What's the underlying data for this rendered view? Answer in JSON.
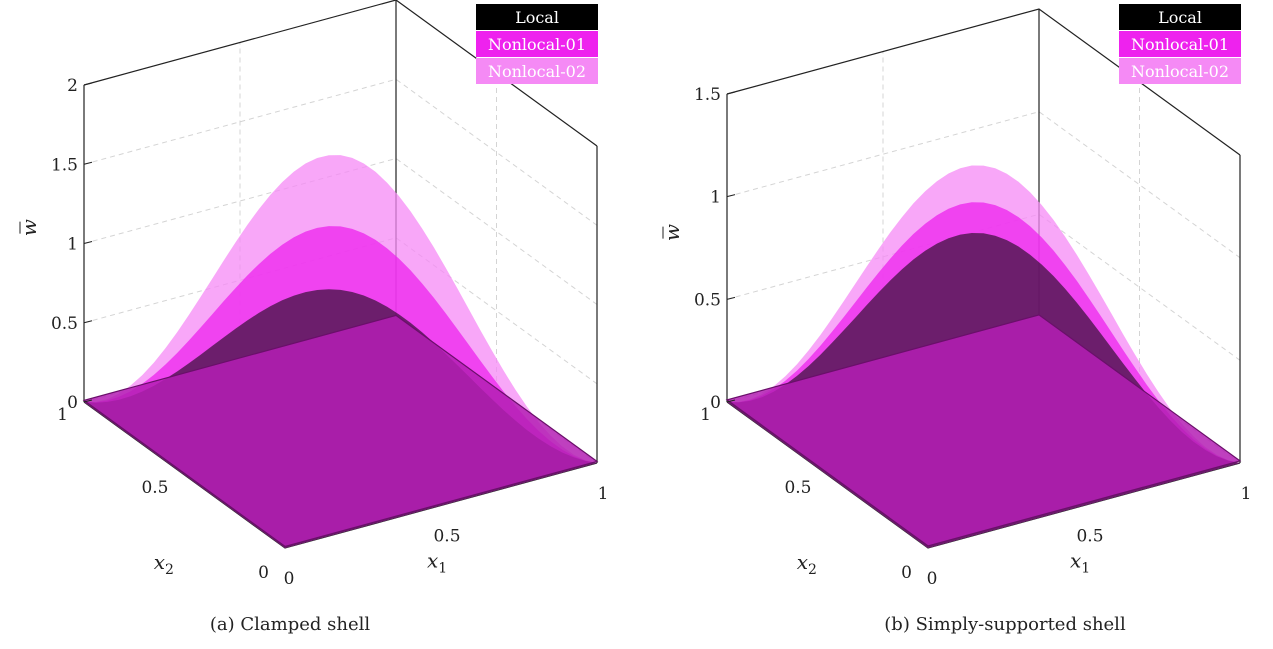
{
  "chart_data": [
    {
      "type": "surface",
      "caption": "(a) Clamped shell",
      "zlabel": "w",
      "xlabel": "x",
      "xlabel_sub": "1",
      "ylabel": "x",
      "ylabel_sub": "2",
      "x_ticks": [
        "0",
        "0.5",
        "1"
      ],
      "y_ticks": [
        "0",
        "0.5",
        "1"
      ],
      "z_ticks": [
        "0",
        "0.5",
        "1",
        "1.5",
        "2"
      ],
      "zlim": [
        0,
        2
      ],
      "grid": true,
      "legend_position": "top-right",
      "series": [
        {
          "name": "Local",
          "color": "#000000",
          "peak": 0.9
        },
        {
          "name": "Nonlocal-01",
          "color": "#ee22ee",
          "peak": 1.3
        },
        {
          "name": "Nonlocal-02",
          "color": "#f58af5",
          "peak": 1.75
        }
      ]
    },
    {
      "type": "surface",
      "caption": "(b) Simply-supported shell",
      "zlabel": "w",
      "xlabel": "x",
      "xlabel_sub": "1",
      "ylabel": "x",
      "ylabel_sub": "2",
      "x_ticks": [
        "0",
        "0.5",
        "1"
      ],
      "y_ticks": [
        "0",
        "0.5",
        "1"
      ],
      "z_ticks": [
        "0",
        "0.5",
        "1",
        "1.5"
      ],
      "zlim": [
        0,
        1.5
      ],
      "grid": true,
      "legend_position": "top-right",
      "series": [
        {
          "name": "Local",
          "color": "#000000",
          "peak": 0.97
        },
        {
          "name": "Nonlocal-01",
          "color": "#ee22ee",
          "peak": 1.12
        },
        {
          "name": "Nonlocal-02",
          "color": "#f58af5",
          "peak": 1.3
        }
      ]
    }
  ]
}
